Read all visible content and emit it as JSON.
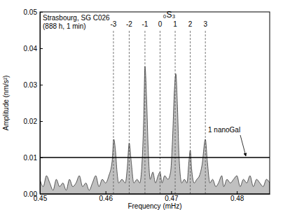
{
  "chart_data": {
    "type": "area",
    "xlabel": "Frequency (mHz)",
    "ylabel": "Amplitude (nm/s²)",
    "annotations": [
      "Strasbourg, SG C026",
      "(888 h, 1 min)"
    ],
    "multiplet_label": "₀S₃",
    "color": "#c0c0c0",
    "xlim": [
      0.45,
      0.485
    ],
    "xticks": [
      0.45,
      0.46,
      0.47,
      0.48
    ],
    "ylim": [
      0,
      0.05
    ],
    "yticks": [
      {
        "value": 0,
        "label": "0.00"
      },
      0.01,
      0.02,
      0.03,
      0.04,
      0.05
    ],
    "singlets": [
      {
        "m": -3,
        "x": 0.4612
      },
      {
        "m": -2,
        "x": 0.4636
      },
      {
        "m": -1,
        "x": 0.466
      },
      {
        "m": 0,
        "x": 0.4683
      },
      {
        "m": 1,
        "x": 0.4706
      },
      {
        "m": 2,
        "x": 0.4729
      },
      {
        "m": 3,
        "x": 0.4752
      }
    ],
    "reference_line": {
      "y": 0.01,
      "label": "1 nanoGal"
    },
    "x": [
      0.45,
      0.4505,
      0.451,
      0.4515,
      0.452,
      0.4525,
      0.453,
      0.4535,
      0.454,
      0.4545,
      0.455,
      0.4555,
      0.456,
      0.4565,
      0.457,
      0.4575,
      0.458,
      0.4585,
      0.459,
      0.4595,
      0.46,
      0.4605,
      0.461,
      0.46125,
      0.4615,
      0.46175,
      0.462,
      0.4625,
      0.463,
      0.4633,
      0.4636,
      0.4639,
      0.4643,
      0.4648,
      0.4652,
      0.4655,
      0.4658,
      0.466,
      0.46625,
      0.4665,
      0.4668,
      0.4672,
      0.4676,
      0.468,
      0.4683,
      0.4686,
      0.469,
      0.4695,
      0.4699,
      0.4702,
      0.4705,
      0.4707,
      0.47095,
      0.4712,
      0.4716,
      0.472,
      0.4724,
      0.4727,
      0.4729,
      0.4731,
      0.4735,
      0.4739,
      0.4743,
      0.4747,
      0.4752,
      0.4755,
      0.4759,
      0.4763,
      0.4768,
      0.4772,
      0.4777,
      0.478,
      0.4785,
      0.479,
      0.4795,
      0.48,
      0.4805,
      0.481,
      0.4815,
      0.482,
      0.4825,
      0.483,
      0.4835,
      0.484,
      0.4845,
      0.485
    ],
    "values": [
      0.004,
      0.002,
      0.005,
      0.003,
      0.001,
      0.004,
      0.002,
      0.003,
      0.001,
      0.004,
      0.002,
      0.003,
      0.005,
      0.002,
      0.003,
      0.001,
      0.003,
      0.005,
      0.002,
      0.004,
      0.003,
      0.005,
      0.009,
      0.015,
      0.012,
      0.006,
      0.003,
      0.004,
      0.003,
      0.007,
      0.014,
      0.009,
      0.003,
      0.004,
      0.003,
      0.007,
      0.02,
      0.035,
      0.026,
      0.012,
      0.004,
      0.006,
      0.003,
      0.005,
      0.006,
      0.003,
      0.005,
      0.004,
      0.006,
      0.015,
      0.029,
      0.033,
      0.024,
      0.01,
      0.003,
      0.004,
      0.003,
      0.009,
      0.012,
      0.007,
      0.003,
      0.004,
      0.005,
      0.008,
      0.015,
      0.009,
      0.003,
      0.004,
      0.002,
      0.003,
      0.005,
      0.002,
      0.004,
      0.003,
      0.004,
      0.005,
      0.002,
      0.004,
      0.003,
      0.005,
      0.002,
      0.004,
      0.003,
      0.002,
      0.004,
      0.003
    ]
  }
}
